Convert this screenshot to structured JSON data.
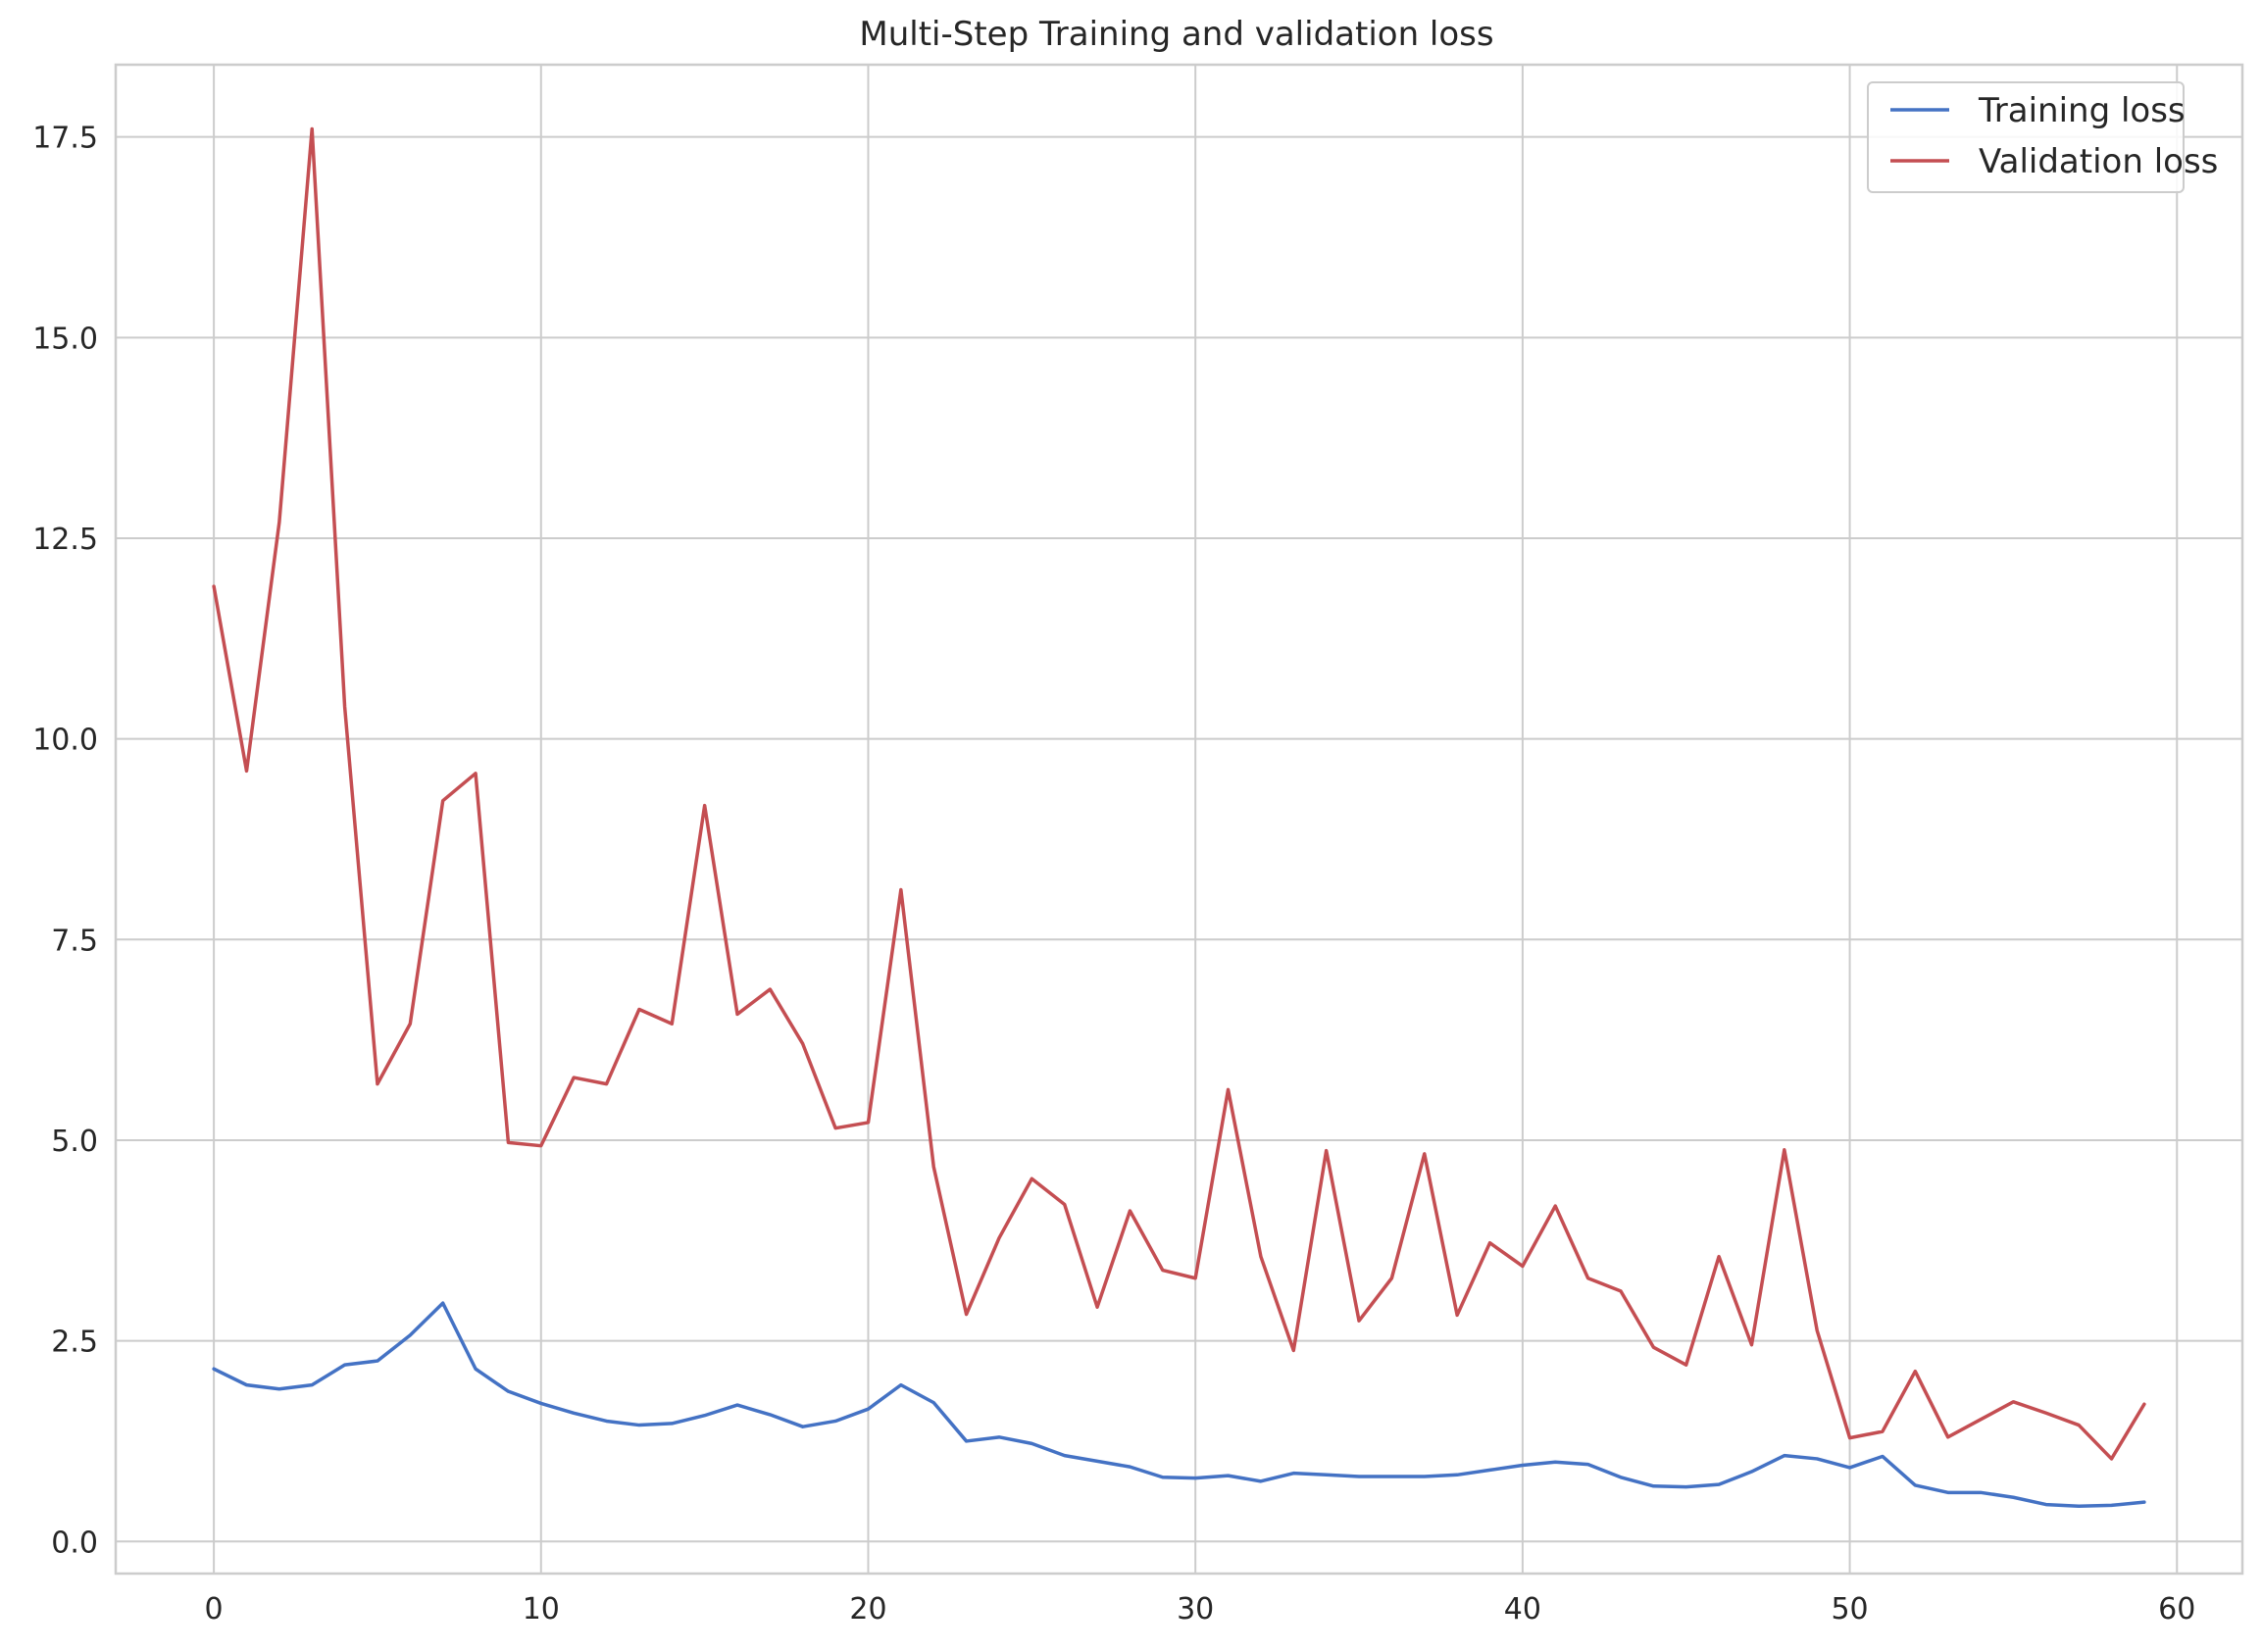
{
  "chart_data": {
    "type": "line",
    "title": "Multi-Step Training and validation loss",
    "xlabel": "",
    "ylabel": "",
    "xlim": [
      -3,
      62
    ],
    "ylim": [
      -0.4,
      18.4
    ],
    "x_ticks": [
      0,
      10,
      20,
      30,
      40,
      50,
      60
    ],
    "x_tick_labels": [
      "0",
      "10",
      "20",
      "30",
      "40",
      "50",
      "60"
    ],
    "y_ticks": [
      0,
      2.5,
      5,
      7.5,
      10,
      12.5,
      15,
      17.5
    ],
    "y_tick_labels": [
      "0.0",
      "2.5",
      "5.0",
      "7.5",
      "10.0",
      "12.5",
      "15.0",
      "17.5"
    ],
    "grid": true,
    "legend_position": "top-right",
    "x": [
      0,
      1,
      2,
      3,
      4,
      5,
      6,
      7,
      8,
      9,
      10,
      11,
      12,
      13,
      14,
      15,
      16,
      17,
      18,
      19,
      20,
      21,
      22,
      23,
      24,
      25,
      26,
      27,
      28,
      29,
      30,
      31,
      32,
      33,
      34,
      35,
      36,
      37,
      38,
      39,
      40,
      41,
      42,
      43,
      44,
      45,
      46,
      47,
      48,
      49,
      50,
      51,
      52,
      53,
      54,
      55,
      56,
      57,
      58,
      59
    ],
    "series": [
      {
        "name": "Training loss",
        "color": "#4472c4",
        "values": [
          2.15,
          1.95,
          1.9,
          1.95,
          2.2,
          2.25,
          2.57,
          2.97,
          2.15,
          1.87,
          1.72,
          1.6,
          1.5,
          1.45,
          1.47,
          1.57,
          1.7,
          1.58,
          1.43,
          1.5,
          1.65,
          1.95,
          1.73,
          1.25,
          1.3,
          1.22,
          1.07,
          1.0,
          0.93,
          0.8,
          0.79,
          0.82,
          0.75,
          0.85,
          0.83,
          0.81,
          0.81,
          0.81,
          0.83,
          0.89,
          0.95,
          0.99,
          0.96,
          0.8,
          0.69,
          0.68,
          0.71,
          0.87,
          1.07,
          1.03,
          0.92,
          1.06,
          0.7,
          0.61,
          0.61,
          0.55,
          0.46,
          0.44,
          0.45,
          0.49
        ]
      },
      {
        "name": "Validation loss",
        "color": "#c44e52",
        "values": [
          11.9,
          9.6,
          12.7,
          17.6,
          10.4,
          5.7,
          6.45,
          9.23,
          9.57,
          4.97,
          4.93,
          5.78,
          5.7,
          6.63,
          6.45,
          9.17,
          6.57,
          6.88,
          6.2,
          5.15,
          5.22,
          8.12,
          4.67,
          2.83,
          3.78,
          4.52,
          4.2,
          2.92,
          4.12,
          3.38,
          3.28,
          5.63,
          3.55,
          2.38,
          4.87,
          2.75,
          3.28,
          4.83,
          2.82,
          3.72,
          3.43,
          4.18,
          3.28,
          3.12,
          2.42,
          2.2,
          3.55,
          2.45,
          4.88,
          2.63,
          1.29,
          1.37,
          2.12,
          1.3,
          1.52,
          1.74,
          1.6,
          1.45,
          1.03,
          1.71
        ]
      }
    ]
  }
}
